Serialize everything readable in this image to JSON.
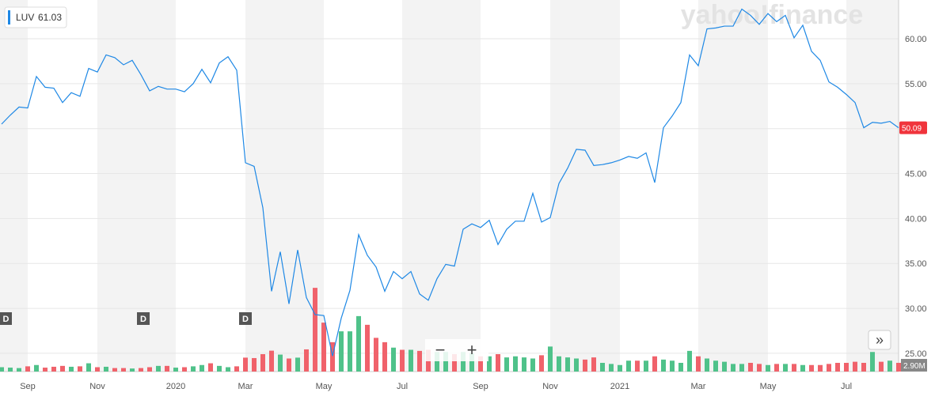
{
  "chart_data": {
    "type": "line",
    "watermark": "yahoo!finance",
    "legend_value": 61.03,
    "dividend_label": "D",
    "controls": [
      "−",
      "+",
      "»"
    ],
    "categories": [
      null,
      null,
      null,
      "Sep",
      null,
      null,
      null,
      null,
      null,
      null,
      null,
      "Nov",
      null,
      null,
      null,
      null,
      null,
      null,
      null,
      null,
      "2020",
      null,
      null,
      null,
      null,
      null,
      null,
      null,
      "Mar",
      null,
      null,
      null,
      null,
      null,
      null,
      null,
      null,
      "May",
      null,
      null,
      null,
      null,
      null,
      null,
      null,
      null,
      "Jul",
      null,
      null,
      null,
      null,
      null,
      null,
      null,
      null,
      "Sep",
      null,
      null,
      null,
      null,
      null,
      null,
      null,
      "Nov",
      null,
      null,
      null,
      null,
      null,
      null,
      null,
      "2021",
      null,
      null,
      null,
      null,
      null,
      null,
      null,
      null,
      "Mar",
      null,
      null,
      null,
      null,
      null,
      null,
      null,
      "May",
      null,
      null,
      null,
      null,
      null,
      null,
      null,
      null,
      "Jul",
      null,
      null,
      null,
      null,
      null,
      null
    ],
    "series": [
      {
        "name": "LUV",
        "color": "#1e88e5",
        "values": [
          50.5,
          51.5,
          52.4,
          52.3,
          55.8,
          54.6,
          54.5,
          52.9,
          54.0,
          53.6,
          56.7,
          56.3,
          58.2,
          57.9,
          57.1,
          57.6,
          56.0,
          54.2,
          54.7,
          54.4,
          54.4,
          54.1,
          55.0,
          56.6,
          55.1,
          57.3,
          58.0,
          56.5,
          46.2,
          45.8,
          41.2,
          31.9,
          36.3,
          30.5,
          36.5,
          31.2,
          29.3,
          29.2,
          24.7,
          28.9,
          32.0,
          38.2,
          35.9,
          34.6,
          31.9,
          34.1,
          33.3,
          34.1,
          31.6,
          30.9,
          33.3,
          34.9,
          34.7,
          38.8,
          39.4,
          39.0,
          39.8,
          37.1,
          38.8,
          39.7,
          39.7,
          42.8,
          39.6,
          40.1,
          43.9,
          45.6,
          47.7,
          47.6,
          45.9,
          46.0,
          46.2,
          46.5,
          46.9,
          46.7,
          47.3,
          44.0,
          50.1,
          51.4,
          52.9,
          58.2,
          57.0,
          61.1,
          61.2,
          61.4,
          61.4,
          63.3,
          62.6,
          61.6,
          62.8,
          61.9,
          62.6,
          60.1,
          61.5,
          58.6,
          57.6,
          55.2,
          54.6,
          53.8,
          52.9,
          50.1,
          50.7,
          50.6,
          50.8,
          50.09
        ]
      }
    ],
    "volume": {
      "up_color": "#4fc28a",
      "down_color": "#f0626b",
      "axis": "y2",
      "values": [
        2.0,
        1.8,
        1.6,
        2.4,
        3.0,
        1.8,
        2.2,
        2.6,
        2.2,
        2.4,
        3.8,
        2.0,
        2.2,
        1.6,
        1.6,
        1.4,
        1.6,
        2.0,
        2.6,
        2.6,
        1.8,
        2.0,
        2.4,
        3.0,
        3.8,
        2.6,
        2.0,
        2.4,
        6.4,
        6.2,
        8.0,
        9.6,
        7.8,
        6.0,
        6.4,
        10.2,
        38.5,
        22.5,
        13.5,
        18.5,
        18.5,
        25.5,
        21.5,
        15.5,
        13.5,
        11.0,
        10.0,
        10.0,
        9.5,
        10.0,
        9.0,
        9.0,
        8.0,
        9.0,
        8.5,
        7.0,
        7.0,
        8.0,
        6.5,
        7.0,
        6.5,
        6.0,
        7.5,
        11.5,
        7.0,
        6.5,
        6.0,
        5.5,
        6.5,
        4.0,
        3.5,
        3.0,
        5.0,
        5.0,
        5.0,
        7.0,
        5.5,
        5.0,
        4.0,
        9.5,
        7.0,
        6.0,
        5.0,
        4.5,
        3.5,
        3.5,
        4.0,
        3.5,
        3.0,
        3.5,
        3.5,
        3.5,
        3.0,
        3.0,
        3.0,
        3.5,
        4.0,
        4.0,
        4.5,
        4.0,
        9.0,
        4.5,
        5.0,
        4.0
      ]
    },
    "ylim": [
      22.97,
      64.31
    ],
    "yticks": [
      {
        "value": 25,
        "label": "25.00"
      },
      {
        "value": 30,
        "label": "30.00"
      },
      {
        "value": 35,
        "label": "35.00"
      },
      {
        "value": 40,
        "label": "40.00"
      },
      {
        "value": 45,
        "label": "45.00"
      },
      {
        "value": 50,
        "label": "50.00"
      },
      {
        "value": 55,
        "label": "55.00"
      },
      {
        "value": 60,
        "label": "60.00"
      }
    ],
    "y2lim": [
      0,
      40
    ],
    "y2ticks": [
      {
        "value": 2.9,
        "label": "2.90M"
      }
    ],
    "grid": true
  }
}
